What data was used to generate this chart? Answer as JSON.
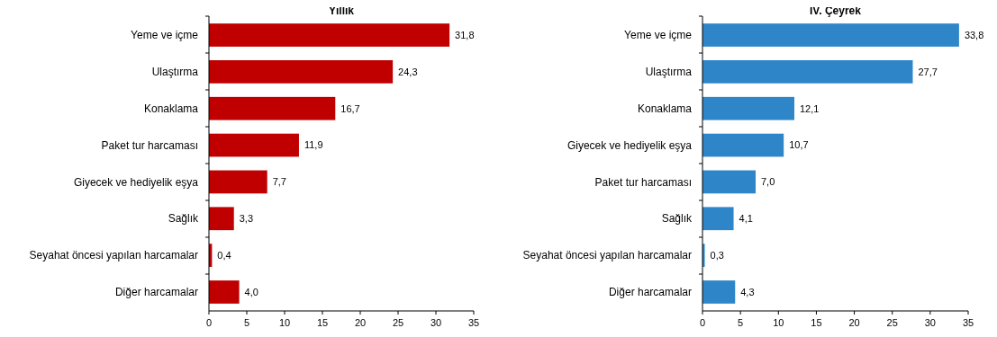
{
  "chart_data": [
    {
      "type": "bar",
      "orientation": "horizontal",
      "title": "Yıllık",
      "categories": [
        "Yeme ve içme",
        "Ulaştırma",
        "Konaklama",
        "Paket tur harcaması",
        "Giyecek ve hediyelik eşya",
        "Sağlık",
        "Seyahat öncesi yapılan harcamalar",
        "Diğer harcamalar"
      ],
      "values": [
        31.8,
        24.3,
        16.7,
        11.9,
        7.7,
        3.3,
        0.4,
        4.0
      ],
      "value_labels": [
        "31,8",
        "24,3",
        "16,7",
        "11,9",
        "7,7",
        "3,3",
        "0,4",
        "4,0"
      ],
      "color": "#c00000",
      "xlim": [
        0,
        35
      ],
      "xticks": [
        0,
        5,
        10,
        15,
        20,
        25,
        30,
        35
      ]
    },
    {
      "type": "bar",
      "orientation": "horizontal",
      "title": "IV. Çeyrek",
      "categories": [
        "Yeme ve içme",
        "Ulaştırma",
        "Konaklama",
        "Giyecek ve hediyelik eşya",
        "Paket tur harcaması",
        "Sağlık",
        "Seyahat öncesi yapılan harcamalar",
        "Diğer harcamalar"
      ],
      "values": [
        33.8,
        27.7,
        12.1,
        10.7,
        7.0,
        4.1,
        0.3,
        4.3
      ],
      "value_labels": [
        "33,8",
        "27,7",
        "12,1",
        "10,7",
        "7,0",
        "4,1",
        "0,3",
        "4,3"
      ],
      "color": "#2e86c9",
      "xlim": [
        0,
        35
      ],
      "xticks": [
        0,
        5,
        10,
        15,
        20,
        25,
        30,
        35
      ]
    }
  ]
}
